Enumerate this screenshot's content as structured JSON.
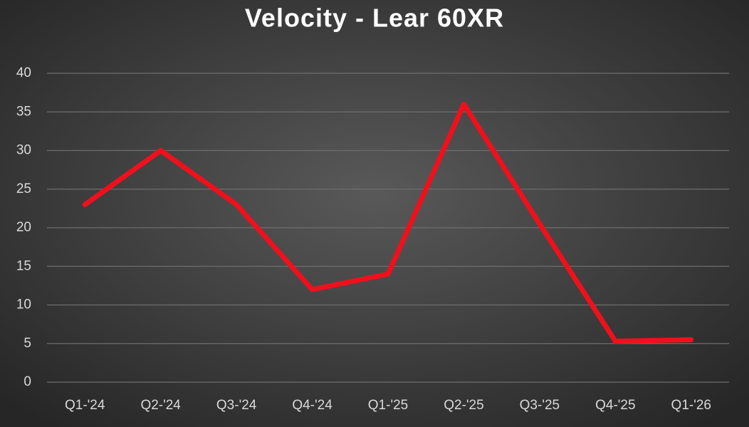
{
  "chart_data": {
    "type": "line",
    "title": "Velocity - Lear 60XR",
    "categories": [
      "Q1-'24",
      "Q2-'24",
      "Q3-'24",
      "Q4-'24",
      "Q1-'25",
      "Q2-'25",
      "Q3-'25",
      "Q4-'25",
      "Q1-'26"
    ],
    "values": [
      23,
      30,
      23,
      12,
      14,
      36,
      20.5,
      5.3,
      5.5
    ],
    "color": "#f0101c",
    "ylim": [
      0,
      40
    ],
    "yticks": [
      0,
      5,
      10,
      15,
      20,
      25,
      30,
      35,
      40
    ],
    "grid": true
  }
}
